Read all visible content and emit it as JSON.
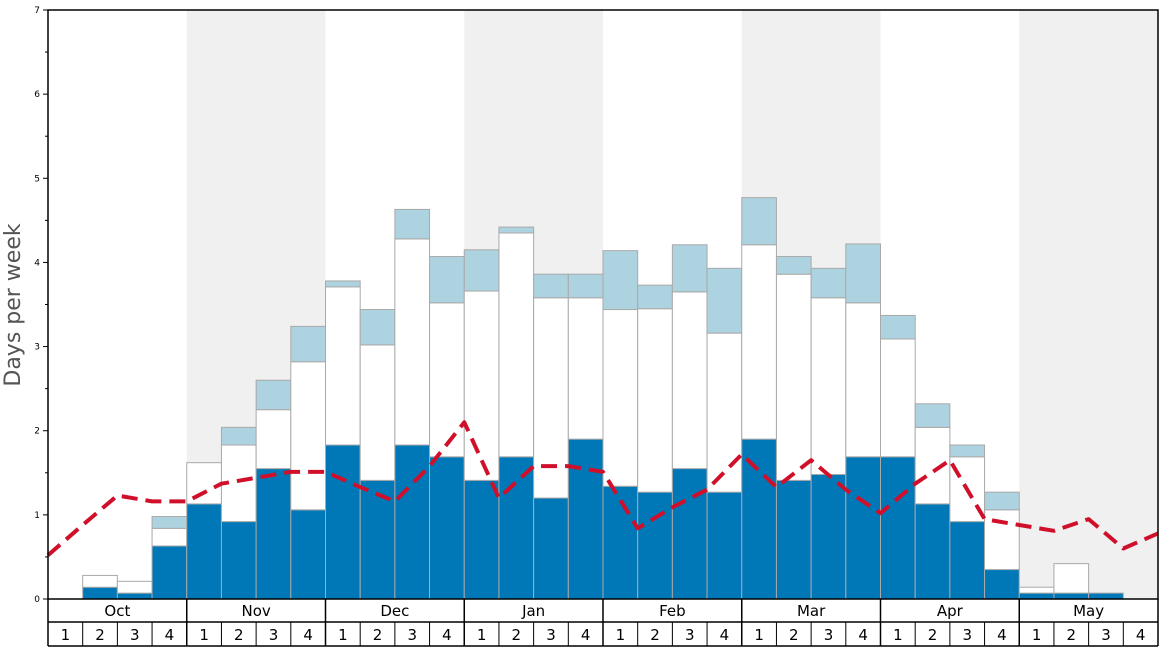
{
  "chart_data": {
    "type": "bar",
    "ylabel": "Days per week",
    "ylim": [
      0,
      7
    ],
    "yticks": [
      "0",
      "1",
      "2",
      "3",
      "4",
      "5",
      "6",
      "7"
    ],
    "months": [
      "Oct",
      "Nov",
      "Dec",
      "Jan",
      "Feb",
      "Mar",
      "Apr",
      "May"
    ],
    "week_labels": [
      "1",
      "2",
      "3",
      "4"
    ],
    "stacking": "stacked",
    "series": [
      {
        "color": "#0077b6",
        "values": [
          0,
          0.14,
          0.07,
          0.63,
          1.13,
          0.92,
          1.55,
          1.06,
          1.83,
          1.41,
          1.83,
          1.69,
          1.41,
          1.69,
          1.2,
          1.9,
          1.34,
          1.27,
          1.55,
          1.27,
          1.9,
          1.41,
          1.48,
          1.69,
          1.69,
          1.13,
          0.92,
          0.35,
          0.07,
          0.07,
          0.07,
          0
        ]
      },
      {
        "color": "#ffffff",
        "values": [
          0,
          0.14,
          0.14,
          0.21,
          0.49,
          0.91,
          0.7,
          1.76,
          1.88,
          1.61,
          2.45,
          1.83,
          2.25,
          2.66,
          2.38,
          1.68,
          2.1,
          2.18,
          2.1,
          1.89,
          2.31,
          2.45,
          2.1,
          1.83,
          1.4,
          0.91,
          0.77,
          0.71,
          0.07,
          0.35,
          0,
          0
        ]
      },
      {
        "color": "#aed3e0",
        "values": [
          0,
          0,
          0,
          0.14,
          0,
          0.21,
          0.35,
          0.42,
          0.07,
          0.42,
          0.35,
          0.55,
          0.49,
          0.07,
          0.28,
          0.28,
          0.7,
          0.28,
          0.56,
          0.77,
          0.56,
          0.21,
          0.35,
          0.7,
          0.28,
          0.28,
          0.14,
          0.21,
          0,
          0,
          0,
          0
        ]
      }
    ],
    "line": {
      "color": "#d0102a",
      "style": "dashed",
      "values": [
        0.52,
        0.88,
        1.23,
        1.16,
        1.16,
        1.37,
        1.44,
        1.51,
        1.51,
        1.33,
        1.16,
        1.58,
        2.1,
        1.2,
        1.58,
        1.58,
        1.51,
        0.84,
        1.09,
        1.3,
        1.72,
        1.33,
        1.65,
        1.3,
        1.02,
        1.37,
        1.65,
        0.95,
        0.88,
        0.81,
        0.95,
        0.6,
        0.78
      ]
    }
  },
  "colors": {
    "shade_band": "#f0f0f0",
    "bar_edge": "#a9a9a9",
    "frame": "#000000",
    "axis_label": "#555555"
  }
}
